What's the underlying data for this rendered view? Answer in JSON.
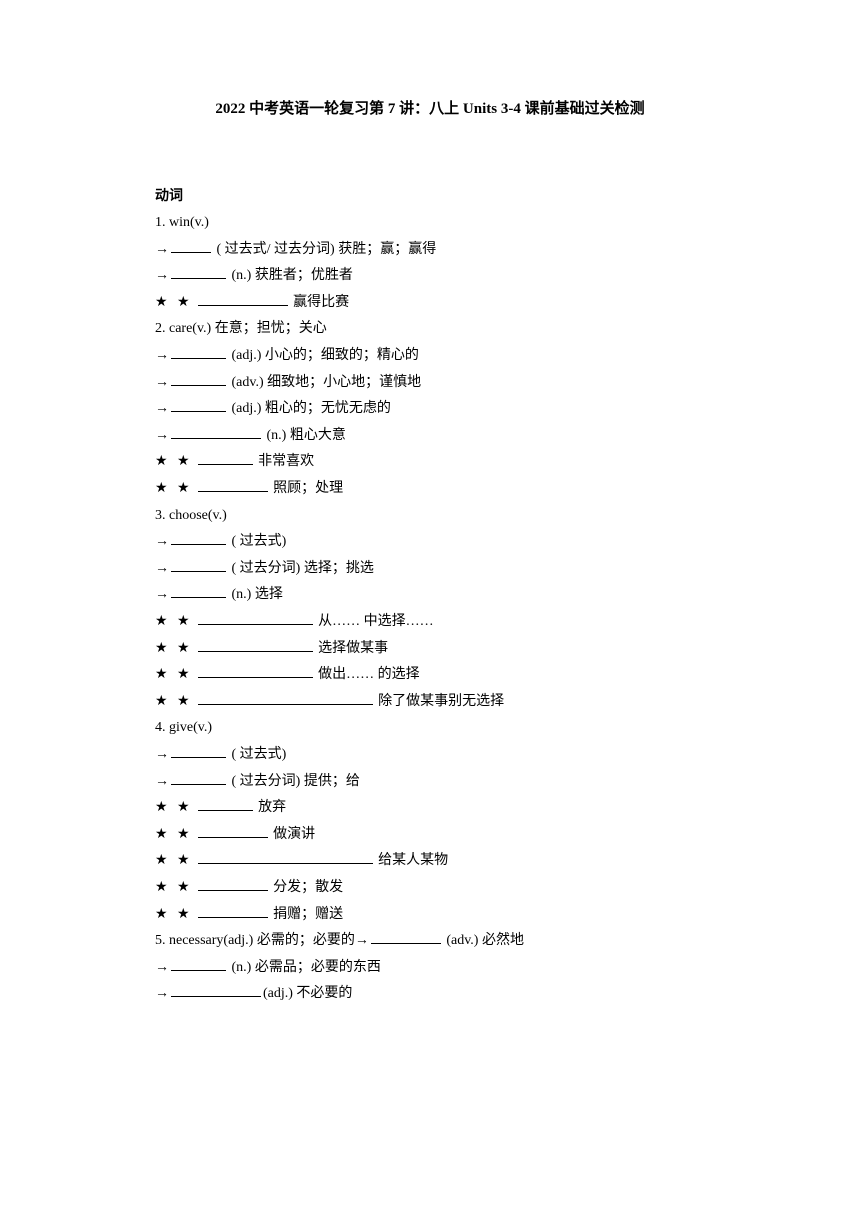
{
  "title": "2022 中考英语一轮复习第 7 讲：八上 Units 3-4 课前基础过关检测",
  "section_header": "动词",
  "lines": [
    "1. win(v.)",
    "→{blank-xs} ( 过去式/ 过去分词) 获胜；赢；赢得",
    "→{blank-s} (n.) 获胜者；优胜者",
    "{stars}{blank-l}   赢得比赛",
    "2. care(v.) 在意；担忧；关心",
    "→{blank-s} (adj.) 小心的；细致的；精心的",
    "→{blank-s} (adv.) 细致地；小心地；谨慎地",
    "→{blank-s} (adj.) 粗心的；无忧无虑的",
    "→{blank-l} (n.) 粗心大意",
    "{stars}{blank-s}   非常喜欢",
    "{stars}{blank-m}    照顾；处理",
    "3. choose(v.)",
    "→{blank-s} ( 过去式)",
    "→{blank-s} ( 过去分词) 选择；挑选",
    "→{blank-s} (n.) 选择",
    "{stars}{blank-xl}   从…… 中选择……",
    "{stars}{blank-xl}   选择做某事",
    "{stars}{blank-xl}   做出…… 的选择",
    "{stars}{blank-xxl}    除了做某事别无选择",
    "4. give(v.)",
    "→{blank-s} ( 过去式)",
    "→{blank-s} ( 过去分词) 提供；给",
    "{stars}{blank-s}   放弃",
    "{stars}{blank-m}    做演讲",
    "{stars}{blank-xxl}   给某人某物",
    "{stars}{blank-m}    分发；散发",
    "{stars}{blank-m}    捐赠；赠送",
    "5. necessary(adj.) 必需的；必要的→{blank-m} (adv.) 必然地",
    "→{blank-s} (n.) 必需品；必要的东西",
    "→{blank-l}(adj.) 不必要的"
  ],
  "stars_text": "★ ★"
}
